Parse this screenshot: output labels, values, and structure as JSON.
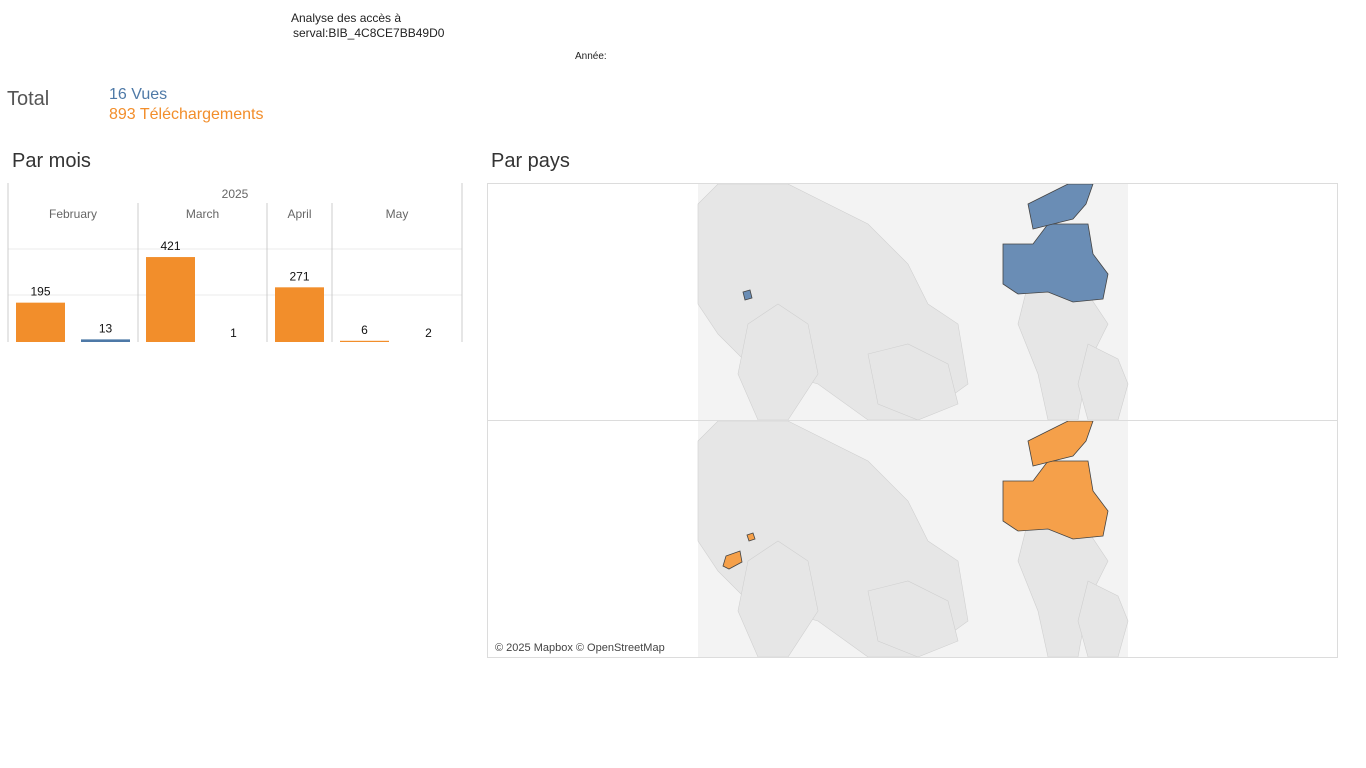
{
  "header": {
    "title_line1": "Analyse des accès à",
    "title_line2": "serval:BIB_4C8CE7BB49D0",
    "year_filter_label": "Année:"
  },
  "totals": {
    "label": "Total",
    "views_text": "16 Vues",
    "downloads_text": "893 Téléchargements",
    "views_count": 16,
    "downloads_count": 893
  },
  "colors": {
    "downloads": "#f28e2b",
    "views": "#4e79a7",
    "map_views_fill": "#6a8db5",
    "map_downloads_fill": "#f5a04a",
    "land": "#e6e6e6",
    "gridline": "#ebebeb",
    "divider": "#cccccc"
  },
  "sections": {
    "by_month_title": "Par mois",
    "by_country_title": "Par pays"
  },
  "chart_data": [
    {
      "type": "bar",
      "title": "Par mois",
      "year_label": "2025",
      "categories": [
        "February",
        "March",
        "April",
        "May"
      ],
      "series": [],
      "bars": [
        {
          "month": "February",
          "kind": "downloads",
          "value": 195,
          "label": "195"
        },
        {
          "month": "February",
          "kind": "views",
          "value": 13,
          "label": "13"
        },
        {
          "month": "March",
          "kind": "downloads",
          "value": 421,
          "label": "421"
        },
        {
          "month": "March",
          "kind": "views",
          "value": 1,
          "label": "1"
        },
        {
          "month": "April",
          "kind": "downloads",
          "value": 271,
          "label": "271"
        },
        {
          "month": "May",
          "kind": "downloads",
          "value": 6,
          "label": "6"
        },
        {
          "month": "May",
          "kind": "views",
          "value": 2,
          "label": "2"
        }
      ],
      "ylim": [
        0,
        440
      ],
      "grid": true,
      "xlabel": "",
      "ylabel": ""
    }
  ],
  "map": {
    "title": "Par pays",
    "attribution": "© 2025 Mapbox © OpenStreetMap",
    "views_countries": [
      "Canada",
      "Switzerland"
    ],
    "downloads_countries": [
      "Canada",
      "Morocco",
      "Switzerland"
    ]
  }
}
